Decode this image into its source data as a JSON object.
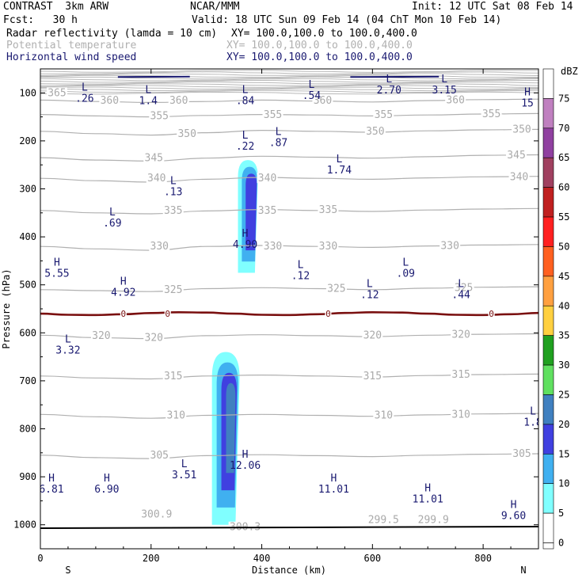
{
  "header": {
    "model": "CONTRAST  3km ARW",
    "org": "NCAR/MMM",
    "init": "Init: 12 UTC Sat 08 Feb 14",
    "fcst": "Fcst:   30 h",
    "valid": "Valid: 18 UTC Sun 09 Feb 14 (04 ChT Mon 10 Feb 14)",
    "fields": [
      {
        "name": "Radar reflectivity (lamda = 10 cm)",
        "xy": "XY= 100.0,100.0 to 100.0,400.0",
        "color": "#000000"
      },
      {
        "name": "Potential temperature",
        "xy": "XY= 100.0,100.0 to 100.0,400.0",
        "color": "#b0b0b0"
      },
      {
        "name": "Horizontal wind speed",
        "xy": "XY= 100.0,100.0 to 100.0,400.0",
        "color": "#191970"
      }
    ]
  },
  "chart_data": {
    "type": "cross-section",
    "xlabel": "Distance (km)",
    "ylabel": "Pressure (hPa)",
    "xlim": [
      0,
      900
    ],
    "ylim": [
      1050,
      50
    ],
    "x_ticks": [
      0,
      200,
      400,
      600,
      800
    ],
    "y_ticks": [
      100,
      200,
      300,
      400,
      500,
      600,
      700,
      800,
      900,
      1000
    ],
    "x_end_labels": {
      "left": "S",
      "right": "N"
    },
    "colorbar": {
      "unit": "dBZ",
      "levels": [
        "75",
        "70",
        "65",
        "60",
        "55",
        "50",
        "45",
        "40",
        "35",
        "30",
        "25",
        "20",
        "15",
        "10",
        "5",
        "0"
      ],
      "colors": [
        "#ffffff",
        "#c080c0",
        "#9040a0",
        "#a04060",
        "#c02020",
        "#ff2020",
        "#ff6020",
        "#ffa040",
        "#ffd040",
        "#20a020",
        "#60e060",
        "#4080c0",
        "#4040e0",
        "#40b0f0",
        "#80ffff",
        "#ffffff"
      ]
    },
    "theta_contours": [
      {
        "value": "360",
        "p": [
          115,
          118,
          120,
          118,
          115,
          117,
          119,
          116,
          114,
          113
        ]
      },
      {
        "value": "355",
        "p": [
          145,
          148,
          150,
          147,
          145,
          146,
          148,
          146,
          144,
          143
        ]
      },
      {
        "value": "350",
        "p": [
          180,
          185,
          188,
          183,
          178,
          180,
          182,
          179,
          177,
          176
        ]
      },
      {
        "value": "345",
        "p": [
          235,
          240,
          242,
          236,
          232,
          234,
          236,
          233,
          230,
          229
        ]
      },
      {
        "value": "340",
        "p": [
          278,
          283,
          286,
          280,
          276,
          278,
          280,
          277,
          275,
          274
        ]
      },
      {
        "value": "335",
        "p": [
          345,
          350,
          352,
          346,
          343,
          345,
          347,
          344,
          342,
          341
        ]
      },
      {
        "value": "330",
        "p": [
          420,
          425,
          428,
          420,
          418,
          420,
          422,
          419,
          417,
          416
        ]
      },
      {
        "value": "325",
        "p": [
          510,
          512,
          514,
          508,
          506,
          508,
          510,
          507,
          505,
          504
        ]
      },
      {
        "value": "320",
        "p": [
          605,
          610,
          612,
          606,
          604,
          606,
          608,
          605,
          603,
          602
        ]
      },
      {
        "value": "315",
        "p": [
          690,
          694,
          696,
          690,
          688,
          690,
          692,
          689,
          687,
          686
        ]
      },
      {
        "value": "310",
        "p": [
          770,
          775,
          778,
          772,
          770,
          772,
          774,
          771,
          769,
          768
        ]
      },
      {
        "value": "305",
        "p": [
          855,
          860,
          862,
          856,
          854,
          856,
          858,
          855,
          853,
          852
        ]
      }
    ],
    "theta_labels": [
      {
        "text": "365",
        "x": 30,
        "p": 100
      },
      {
        "text": "360",
        "x": 125,
        "p": 116
      },
      {
        "text": "360",
        "x": 250,
        "p": 116
      },
      {
        "text": "360",
        "x": 510,
        "p": 116
      },
      {
        "text": "360",
        "x": 750,
        "p": 115
      },
      {
        "text": "355",
        "x": 420,
        "p": 146
      },
      {
        "text": "355",
        "x": 620,
        "p": 146
      },
      {
        "text": "355",
        "x": 815,
        "p": 144
      },
      {
        "text": "355",
        "x": 215,
        "p": 148
      },
      {
        "text": "350",
        "x": 265,
        "p": 185
      },
      {
        "text": "350",
        "x": 605,
        "p": 180
      },
      {
        "text": "350",
        "x": 870,
        "p": 176
      },
      {
        "text": "345",
        "x": 205,
        "p": 236
      },
      {
        "text": "345",
        "x": 860,
        "p": 230
      },
      {
        "text": "340",
        "x": 210,
        "p": 278
      },
      {
        "text": "340",
        "x": 410,
        "p": 278
      },
      {
        "text": "340",
        "x": 865,
        "p": 275
      },
      {
        "text": "335",
        "x": 240,
        "p": 345
      },
      {
        "text": "335",
        "x": 410,
        "p": 345
      },
      {
        "text": "335",
        "x": 520,
        "p": 344
      },
      {
        "text": "330",
        "x": 215,
        "p": 420
      },
      {
        "text": "330",
        "x": 420,
        "p": 420
      },
      {
        "text": "330",
        "x": 520,
        "p": 420
      },
      {
        "text": "330",
        "x": 740,
        "p": 419
      },
      {
        "text": "325",
        "x": 240,
        "p": 510
      },
      {
        "text": "325",
        "x": 535,
        "p": 508
      },
      {
        "text": "325",
        "x": 765,
        "p": 506
      },
      {
        "text": "320",
        "x": 110,
        "p": 606
      },
      {
        "text": "320",
        "x": 205,
        "p": 610
      },
      {
        "text": "320",
        "x": 600,
        "p": 605
      },
      {
        "text": "320",
        "x": 760,
        "p": 604
      },
      {
        "text": "315",
        "x": 240,
        "p": 690
      },
      {
        "text": "315",
        "x": 600,
        "p": 690
      },
      {
        "text": "315",
        "x": 760,
        "p": 687
      },
      {
        "text": "310",
        "x": 245,
        "p": 772
      },
      {
        "text": "310",
        "x": 620,
        "p": 772
      },
      {
        "text": "310",
        "x": 760,
        "p": 770
      },
      {
        "text": "305",
        "x": 215,
        "p": 855
      },
      {
        "text": "305",
        "x": 870,
        "p": 852
      },
      {
        "text": "300.9",
        "x": 210,
        "p": 978
      },
      {
        "text": "300.3",
        "x": 370,
        "p": 1005
      },
      {
        "text": "299.5",
        "x": 620,
        "p": 990
      },
      {
        "text": "299.9",
        "x": 710,
        "p": 990
      }
    ],
    "freezing_level": {
      "value": "0",
      "p": 560,
      "label_x": [
        150,
        230,
        520,
        815
      ]
    },
    "extrema": [
      {
        "type": "L",
        "value": ".26",
        "x": 80,
        "p": 95
      },
      {
        "type": "L",
        "value": "1.4",
        "x": 195,
        "p": 100
      },
      {
        "type": "L",
        "value": ".84",
        "x": 370,
        "p": 100
      },
      {
        "type": "L",
        "value": ".54",
        "x": 490,
        "p": 90
      },
      {
        "type": "L",
        "value": "2.70",
        "x": 630,
        "p": 78
      },
      {
        "type": "L",
        "value": "3.15",
        "x": 730,
        "p": 78
      },
      {
        "type": "H",
        "value": "15",
        "x": 880,
        "p": 105
      },
      {
        "type": "L",
        "value": ".22",
        "x": 370,
        "p": 195
      },
      {
        "type": "L",
        "value": ".87",
        "x": 430,
        "p": 188
      },
      {
        "type": "L",
        "value": "1.74",
        "x": 540,
        "p": 245
      },
      {
        "type": "L",
        "value": ".13",
        "x": 240,
        "p": 290
      },
      {
        "type": "L",
        "value": ".69",
        "x": 130,
        "p": 355
      },
      {
        "type": "H",
        "value": "4.90",
        "x": 370,
        "p": 400
      },
      {
        "type": "H",
        "value": "5.55",
        "x": 30,
        "p": 460
      },
      {
        "type": "L",
        "value": ".12",
        "x": 470,
        "p": 465
      },
      {
        "type": "L",
        "value": ".09",
        "x": 660,
        "p": 460
      },
      {
        "type": "H",
        "value": "4.92",
        "x": 150,
        "p": 500
      },
      {
        "type": "L",
        "value": ".12",
        "x": 595,
        "p": 505
      },
      {
        "type": "L",
        "value": ".44",
        "x": 760,
        "p": 505
      },
      {
        "type": "L",
        "value": "3.32",
        "x": 50,
        "p": 620
      },
      {
        "type": "L",
        "value": "1.8",
        "x": 890,
        "p": 770
      },
      {
        "type": "H",
        "value": "12.06",
        "x": 370,
        "p": 860
      },
      {
        "type": "L",
        "value": "3.51",
        "x": 260,
        "p": 880
      },
      {
        "type": "H",
        "value": "6.81",
        "x": 20,
        "p": 910
      },
      {
        "type": "H",
        "value": "6.90",
        "x": 120,
        "p": 910
      },
      {
        "type": "H",
        "value": "11.01",
        "x": 530,
        "p": 910
      },
      {
        "type": "H",
        "value": "11.01",
        "x": 700,
        "p": 930
      },
      {
        "type": "H",
        "value": "9.60",
        "x": 855,
        "p": 965
      }
    ],
    "reflectivity_cells": [
      {
        "dbz_ranges": [
          "5",
          "10",
          "15"
        ],
        "x_center": 375,
        "p_top": 240,
        "p_bottom": 475,
        "x_half_width": 18
      },
      {
        "dbz_ranges": [
          "5",
          "10",
          "15",
          "20"
        ],
        "x_center": 335,
        "p_top": 640,
        "p_bottom": 1000,
        "x_half_width": 25
      }
    ]
  }
}
